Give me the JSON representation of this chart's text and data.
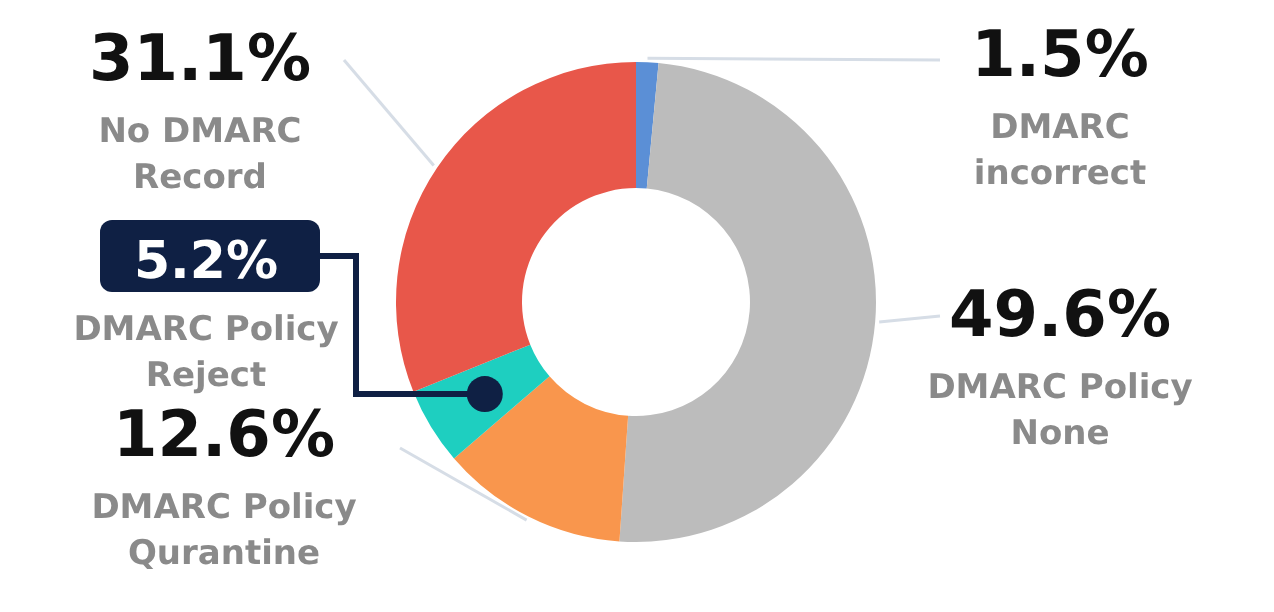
{
  "chart_data": {
    "type": "donut",
    "categories": [
      "DMARC incorrect",
      "DMARC Policy None",
      "DMARC Policy Qurantine",
      "DMARC Policy Reject",
      "No DMARC Record"
    ],
    "values": [
      1.5,
      49.6,
      12.6,
      5.2,
      31.1
    ],
    "value_labels": [
      "1.5%",
      "49.6%",
      "12.6%",
      "5.2%",
      "31.1%"
    ],
    "colors": [
      "#5b8fd6",
      "#bcbcbc",
      "#f9964d",
      "#1ecfc0",
      "#e8574a"
    ],
    "legend": false
  }
}
